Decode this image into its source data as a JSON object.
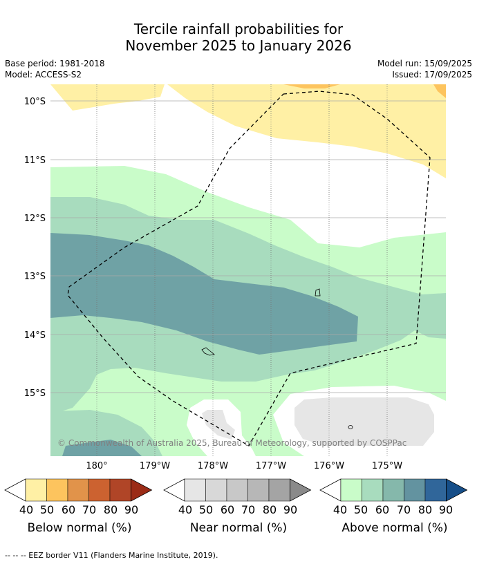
{
  "title": {
    "line1": "Tercile rainfall probabilities for",
    "line2": "November 2025 to January 2026"
  },
  "meta": {
    "base_period": "Base period: 1981-2018",
    "model": "Model: ACCESS-S2",
    "model_run": "Model run: 15/09/2025",
    "issued": "Issued: 17/09/2025"
  },
  "map": {
    "lat_labels": [
      "10°S",
      "11°S",
      "12°S",
      "13°S",
      "14°S",
      "15°S"
    ],
    "lon_labels": [
      "180°",
      "179°W",
      "178°W",
      "177°W",
      "176°W",
      "175°W"
    ],
    "copyright": "© Commonwealth of Australia 2025, Bureau of Meteorology, supported by COSPPac"
  },
  "colorbars": [
    {
      "name": "below",
      "title": "Below normal (%)",
      "labels": [
        "40",
        "50",
        "60",
        "70",
        "80",
        "90"
      ],
      "colors": [
        "#fff0a5",
        "#fdc45e",
        "#e1934a",
        "#cc6230",
        "#b04527",
        "#9b2b16"
      ]
    },
    {
      "name": "near",
      "title": "Near normal (%)",
      "labels": [
        "40",
        "50",
        "60",
        "70",
        "80",
        "90"
      ],
      "colors": [
        "#e6e6e6",
        "#d8d8d8",
        "#c8c8c8",
        "#b7b7b7",
        "#a4a4a4",
        "#8a8a8a"
      ]
    },
    {
      "name": "above",
      "title": "Above normal (%)",
      "labels": [
        "40",
        "50",
        "60",
        "70",
        "80",
        "90"
      ],
      "colors": [
        "#c9fcc9",
        "#a8dcbe",
        "#85b8ab",
        "#6393a0",
        "#30669a",
        "#164e88"
      ]
    }
  ],
  "footnote": "--  --  -- EEZ border V11 (Flanders Marine Institute, 2019)."
}
